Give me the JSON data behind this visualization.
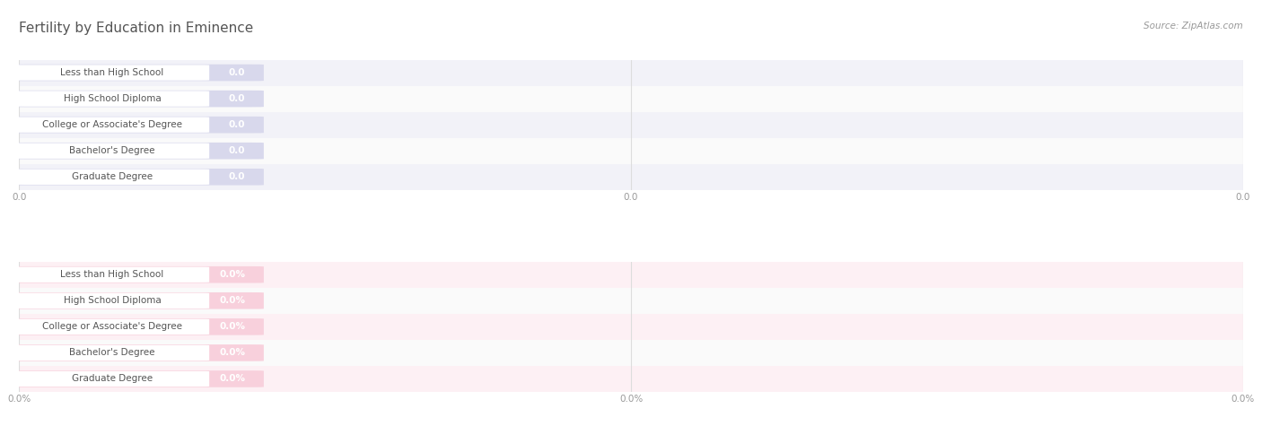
{
  "title": "Fertility by Education in Eminence",
  "source_text": "Source: ZipAtlas.com",
  "categories": [
    "Less than High School",
    "High School Diploma",
    "College or Associate's Degree",
    "Bachelor's Degree",
    "Graduate Degree"
  ],
  "values_top": [
    0.0,
    0.0,
    0.0,
    0.0,
    0.0
  ],
  "values_bottom": [
    0.0,
    0.0,
    0.0,
    0.0,
    0.0
  ],
  "labels_top": [
    "0.0",
    "0.0",
    "0.0",
    "0.0",
    "0.0"
  ],
  "labels_bottom": [
    "0.0%",
    "0.0%",
    "0.0%",
    "0.0%",
    "0.0%"
  ],
  "bar_color_top": "#b0b0d8",
  "bar_color_bottom": "#f4a0b8",
  "bar_bg_color_top": "#d8d8ec",
  "bar_bg_color_bottom": "#f8d0dc",
  "text_color": "#555555",
  "title_color": "#555555",
  "bg_color": "#ffffff",
  "tick_label_color": "#999999",
  "row_bg_odd": "#f2f2f8",
  "row_bg_even": "#fafafa",
  "row_bg_odd_bottom": "#fdf0f4",
  "row_bg_even_bottom": "#fafafa",
  "source_color": "#999999",
  "value_label_color_top": "#c8c8e0",
  "value_label_color_bottom": "#f0b0c4"
}
